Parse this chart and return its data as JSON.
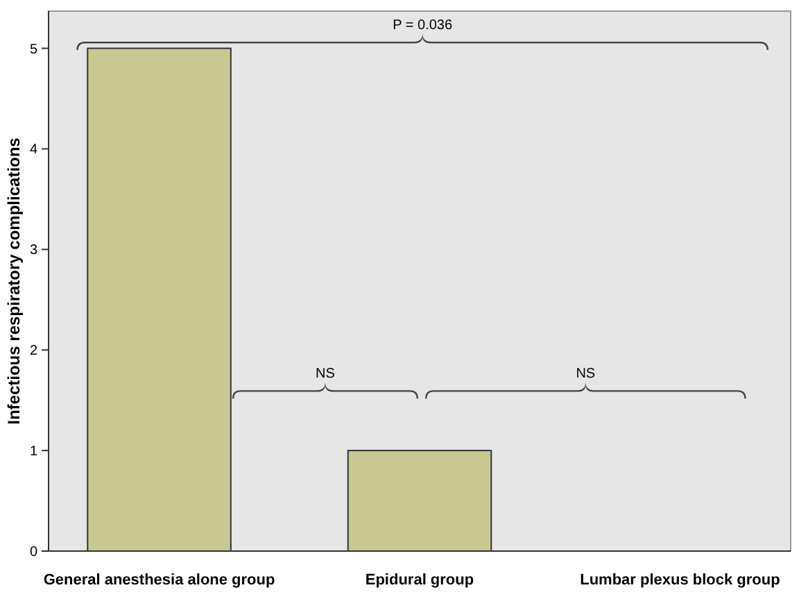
{
  "chart_data": {
    "type": "bar",
    "ylabel": "Infectious respiratory complications",
    "categories": [
      "General anesthesia alone group",
      "Epidural group",
      "Lumbar plexus block group"
    ],
    "values": [
      5,
      1,
      0
    ],
    "color": "#c9c893",
    "ylim": [
      0,
      5.37
    ],
    "yticks": [
      0,
      1,
      2,
      3,
      4,
      5
    ],
    "grid": false,
    "annotations": [
      "P = 0.036",
      "NS",
      "NS"
    ]
  }
}
